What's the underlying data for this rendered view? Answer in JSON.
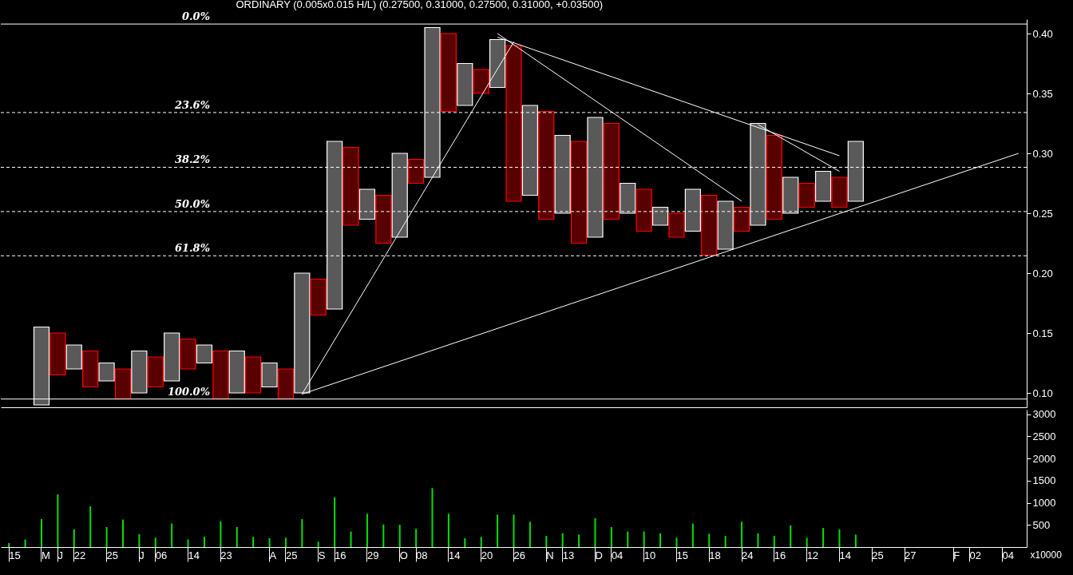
{
  "chart_data": [
    {
      "type": "bar",
      "title": "ORDINARY (0.005x0.015 H/L) (0.27500, 0.31000, 0.27500, 0.31000, +0.03500)",
      "categories": [
        null,
        null,
        null,
        null,
        null,
        null,
        null,
        null,
        null,
        null,
        null,
        null,
        null,
        null,
        null,
        null,
        null,
        null,
        null,
        null,
        null,
        null,
        null,
        null,
        null,
        null,
        null,
        null,
        null,
        null,
        null,
        null,
        null,
        null,
        null,
        null,
        null,
        null,
        null,
        null,
        null,
        null,
        null,
        null,
        null,
        null,
        null,
        null,
        null,
        null,
        null,
        null,
        null,
        null,
        null,
        null,
        null,
        null,
        null,
        null,
        null,
        null,
        null
      ],
      "series": [
        {
          "type": "bar",
          "values": [
            null,
            null,
            0.065,
            0.035,
            0.02,
            0.03,
            0.015,
            0.025,
            0.035,
            0.025,
            0.04,
            0.025,
            0.015,
            0.04,
            0.035,
            0.03,
            0.02,
            0.025,
            0.1,
            0.03,
            0.14,
            0.065,
            0.025,
            0.04,
            0.07,
            0.02,
            0.125,
            0.065,
            0.035,
            0.02,
            0.04,
            0.13,
            0.075,
            0.09,
            0.065,
            0.085,
            0.1,
            0.08,
            0.025,
            0.035,
            0.015,
            0.02,
            0.035,
            0.05,
            0.04,
            0.02,
            0.085,
            0.07,
            0.03,
            0.02,
            0.025,
            0.025,
            0.05,
            null,
            null,
            null,
            null,
            null,
            null,
            null,
            null,
            null,
            null
          ],
          "base": [
            null,
            null,
            0.09,
            0.115,
            0.12,
            0.105,
            0.11,
            0.095,
            0.1,
            0.105,
            0.11,
            0.12,
            0.125,
            0.095,
            0.1,
            0.1,
            0.105,
            0.095,
            0.1,
            0.165,
            0.17,
            0.24,
            0.245,
            0.225,
            0.23,
            0.275,
            0.28,
            0.335,
            0.34,
            0.35,
            0.355,
            0.26,
            0.265,
            0.245,
            0.25,
            0.225,
            0.23,
            0.245,
            0.25,
            0.235,
            0.24,
            0.23,
            0.235,
            0.215,
            0.22,
            0.235,
            0.24,
            0.245,
            0.25,
            0.255,
            0.26,
            0.255,
            0.26,
            null,
            null,
            null,
            null,
            null,
            null,
            null,
            null,
            null,
            null
          ],
          "colors": [
            null,
            null,
            "#ffffff",
            "#ff0000",
            "#ffffff",
            "#ff0000",
            "#ffffff",
            "#ff0000",
            "#ffffff",
            "#ff0000",
            "#ffffff",
            "#ff0000",
            "#ffffff",
            "#ff0000",
            "#ffffff",
            "#ff0000",
            "#ffffff",
            "#ff0000",
            "#ffffff",
            "#ff0000",
            "#ffffff",
            "#ff0000",
            "#ffffff",
            "#ff0000",
            "#ffffff",
            "#ff0000",
            "#ffffff",
            "#ff0000",
            "#ffffff",
            "#ff0000",
            "#ffffff",
            "#ff0000",
            "#ffffff",
            "#ff0000",
            "#ffffff",
            "#ff0000",
            "#ffffff",
            "#ff0000",
            "#ffffff",
            "#ff0000",
            "#ffffff",
            "#ff0000",
            "#ffffff",
            "#ff0000",
            "#ffffff",
            "#ff0000",
            "#ffffff",
            "#ff0000",
            "#ffffff",
            "#ff0000",
            "#ffffff",
            "#ff0000",
            "#ffffff",
            null,
            null,
            null,
            null,
            null,
            null,
            null,
            null,
            null,
            null
          ]
        },
        {
          "type": "line",
          "color": "#ffffff",
          "values": [
            null,
            null,
            null,
            null,
            null,
            null,
            null,
            null,
            null,
            null,
            null,
            null,
            null,
            null,
            null,
            null,
            null,
            null,
            0.099,
            null,
            null,
            null,
            null,
            null,
            null,
            null,
            null,
            null,
            null,
            null,
            null,
            0.393,
            null,
            null,
            null,
            null,
            null,
            null,
            null,
            null,
            null,
            null,
            null,
            null,
            null,
            null,
            null,
            null,
            null,
            null,
            null,
            null,
            null,
            null,
            null,
            null,
            null,
            null,
            null,
            null,
            null,
            null,
            null
          ]
        },
        {
          "type": "line",
          "color": "#ffffff",
          "values": [
            null,
            null,
            null,
            null,
            null,
            null,
            null,
            null,
            null,
            null,
            null,
            null,
            null,
            null,
            null,
            null,
            null,
            null,
            0.099,
            null,
            null,
            null,
            null,
            null,
            null,
            null,
            null,
            null,
            null,
            null,
            null,
            null,
            null,
            null,
            null,
            null,
            null,
            null,
            null,
            null,
            null,
            null,
            null,
            null,
            null,
            null,
            null,
            null,
            null,
            null,
            null,
            null,
            null,
            null,
            null,
            null,
            null,
            null,
            null,
            null,
            null,
            null,
            0.3
          ]
        },
        {
          "type": "line",
          "color": "#ffffff",
          "values": [
            null,
            null,
            null,
            null,
            null,
            null,
            null,
            null,
            null,
            null,
            null,
            null,
            null,
            null,
            null,
            null,
            null,
            null,
            null,
            null,
            null,
            null,
            null,
            null,
            null,
            null,
            null,
            null,
            null,
            null,
            0.4,
            null,
            null,
            null,
            null,
            null,
            null,
            null,
            null,
            null,
            null,
            null,
            null,
            null,
            null,
            0.26,
            null,
            null,
            null,
            null,
            null,
            null,
            null,
            null,
            null,
            null,
            null,
            null,
            null,
            null,
            null,
            null,
            null
          ]
        },
        {
          "type": "line",
          "color": "#ffffff",
          "values": [
            null,
            null,
            null,
            null,
            null,
            null,
            null,
            null,
            null,
            null,
            null,
            null,
            null,
            null,
            null,
            null,
            null,
            null,
            null,
            null,
            null,
            null,
            null,
            null,
            null,
            null,
            null,
            null,
            null,
            null,
            0.397,
            null,
            null,
            null,
            null,
            null,
            null,
            null,
            null,
            null,
            null,
            null,
            null,
            null,
            null,
            null,
            null,
            null,
            null,
            null,
            null,
            0.298,
            null,
            null,
            null,
            null,
            null,
            null,
            null,
            null,
            null,
            null,
            null
          ]
        },
        {
          "type": "line",
          "color": "#ffffff",
          "values": [
            null,
            null,
            null,
            null,
            null,
            null,
            null,
            null,
            null,
            null,
            null,
            null,
            null,
            null,
            null,
            null,
            null,
            null,
            null,
            null,
            null,
            null,
            null,
            null,
            null,
            null,
            null,
            null,
            null,
            null,
            null,
            null,
            null,
            null,
            null,
            null,
            null,
            null,
            null,
            null,
            null,
            null,
            null,
            null,
            null,
            null,
            0.324,
            null,
            null,
            null,
            null,
            0.285,
            null,
            null,
            null,
            null,
            null,
            null,
            null,
            null,
            null,
            null,
            null
          ]
        }
      ],
      "ylim": [
        0.088,
        0.412
      ],
      "yticks": [
        {
          "value": 0.1,
          "label": "0.10"
        },
        0.15,
        {
          "value": 0.2,
          "label": "0.20"
        },
        0.25,
        {
          "value": 0.3,
          "label": "0.30"
        },
        0.35,
        {
          "value": 0.4,
          "label": "0.40"
        }
      ],
      "y2lim": [
        102.2,
        -1.3
      ],
      "ref_lines": [
        {
          "axis": "y2",
          "value": 0,
          "label": "0.0%",
          "line_style": "solid"
        },
        {
          "axis": "y2",
          "value": 23.6,
          "label": "23.6%",
          "line_style": "dashed"
        },
        {
          "axis": "y2",
          "value": 38.2,
          "label": "38.2%",
          "line_style": "dashed"
        },
        {
          "axis": "y2",
          "value": 50,
          "label": "50.0%",
          "line_style": "dashed"
        },
        {
          "axis": "y2",
          "value": 61.8,
          "label": "61.8%",
          "line_style": "dashed"
        },
        {
          "axis": "y2",
          "value": 100,
          "label": "100.0%",
          "line_style": "solid"
        }
      ]
    },
    {
      "type": "bar",
      "color": "#00e000",
      "ylabel": "x10000",
      "categories": [
        "15",
        null,
        "M",
        "J",
        "22",
        null,
        "25",
        null,
        "J",
        "06",
        null,
        "14",
        null,
        "23",
        null,
        null,
        "A",
        "25",
        null,
        "S",
        "16",
        null,
        "29",
        null,
        "O",
        "08",
        null,
        "14",
        null,
        "20",
        null,
        "26",
        null,
        "N",
        "13",
        null,
        "D",
        "04",
        null,
        "10",
        null,
        "15",
        null,
        "18",
        null,
        "24",
        null,
        "16",
        null,
        "12",
        null,
        "14",
        null,
        "25",
        null,
        "27",
        null,
        null,
        "F",
        "02",
        null,
        "04",
        null
      ],
      "values": [
        90,
        170,
        630,
        1190,
        400,
        920,
        450,
        620,
        290,
        210,
        530,
        170,
        230,
        580,
        450,
        230,
        200,
        210,
        630,
        120,
        1120,
        350,
        750,
        510,
        500,
        410,
        1330,
        750,
        200,
        230,
        730,
        730,
        570,
        250,
        310,
        280,
        650,
        450,
        350,
        350,
        310,
        210,
        530,
        300,
        250,
        570,
        310,
        250,
        490,
        210,
        430,
        400,
        280,
        null,
        null,
        null,
        null,
        null,
        null,
        null,
        null,
        null,
        null
      ],
      "ylim": [
        0,
        3100
      ],
      "yticks": [
        500,
        1000,
        1500,
        2000,
        2500,
        3000
      ]
    }
  ]
}
